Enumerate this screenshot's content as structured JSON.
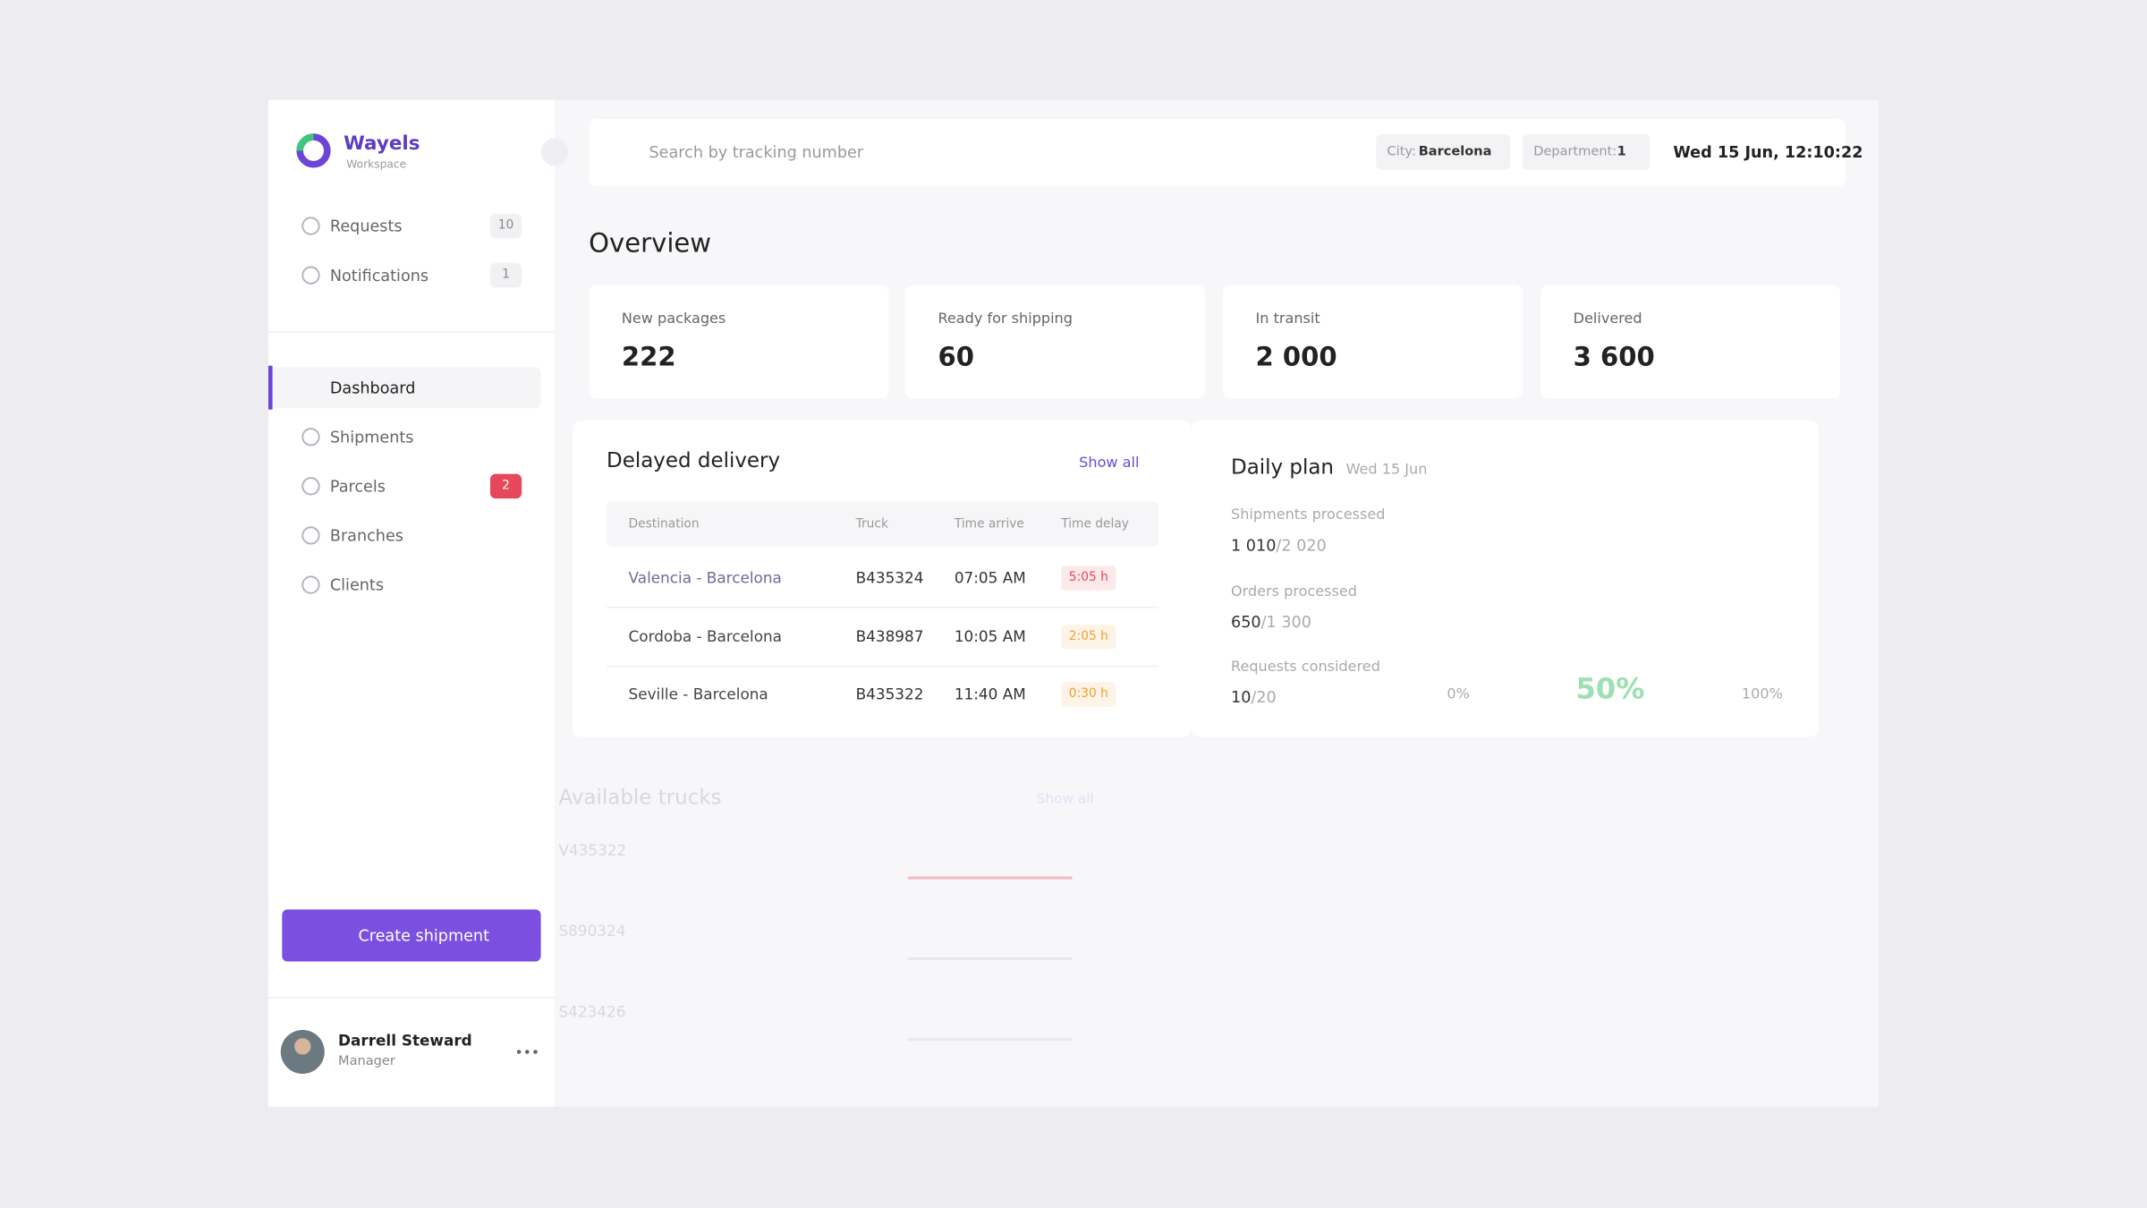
{
  "brand": {
    "name": "Wayels",
    "subtitle": "Workspace"
  },
  "sidebar": {
    "top": [
      {
        "label": "Requests",
        "badge": "10"
      },
      {
        "label": "Notifications",
        "badge": "1"
      }
    ],
    "nav": [
      {
        "label": "Dashboard",
        "active": true
      },
      {
        "label": "Shipments"
      },
      {
        "label": "Parcels",
        "badge": "2",
        "badge_color": "#e5485a"
      },
      {
        "label": "Branches"
      },
      {
        "label": "Clients"
      }
    ],
    "create_button": "Create shipment",
    "user": {
      "name": "Darrell Steward",
      "role": "Manager"
    }
  },
  "header": {
    "search_placeholder": "Search by tracking number",
    "city": {
      "label": "City:",
      "value": "Barcelona"
    },
    "department": {
      "label": "Department:",
      "value": "1"
    },
    "datetime": "Wed 15 Jun, 12:10:22"
  },
  "overview": {
    "title": "Overview",
    "cards": [
      {
        "label": "New packages",
        "value": "222"
      },
      {
        "label": "Ready for shipping",
        "value": "60"
      },
      {
        "label": "In transit",
        "value": "2 000"
      },
      {
        "label": "Delivered",
        "value": "3 600"
      }
    ]
  },
  "delayed": {
    "title": "Delayed delivery",
    "show_all": "Show all",
    "columns": [
      "Destination",
      "Truck",
      "Time arrive",
      "Time delay"
    ],
    "rows": [
      {
        "destination": "Valencia - Barcelona",
        "truck": "B435324",
        "time_arrive": "07:05 AM",
        "time_delay": "5:05 h",
        "color": "#e5485a"
      },
      {
        "destination": "Cordoba - Barcelona",
        "truck": "B438987",
        "time_arrive": "10:05 AM",
        "time_delay": "2:05 h",
        "color": "#f0a030"
      },
      {
        "destination": "Seville - Barcelona",
        "truck": "B435322",
        "time_arrive": "11:40 AM",
        "time_delay": "0:30 h",
        "color": "#f0a030"
      }
    ]
  },
  "daily_plan": {
    "title": "Daily plan",
    "date": "Wed 15 Jun",
    "stats": [
      {
        "label": "Shipments processed",
        "done": "1 010",
        "total": "/2 020"
      },
      {
        "label": "Orders processed",
        "done": "650",
        "total": "/1 300"
      },
      {
        "label": "Requests considered",
        "done": "10",
        "total": "/20"
      }
    ],
    "gauge": {
      "value": 50,
      "label": "50%",
      "ticks": [
        {
          "value": 0,
          "label": "0%"
        },
        {
          "value": 100,
          "label": "100%"
        }
      ],
      "color": "#9de0b2"
    }
  },
  "trucks": {
    "title": "Available trucks",
    "show_all": "Show all",
    "items": [
      "V435322",
      "S890324",
      "S423426"
    ]
  }
}
